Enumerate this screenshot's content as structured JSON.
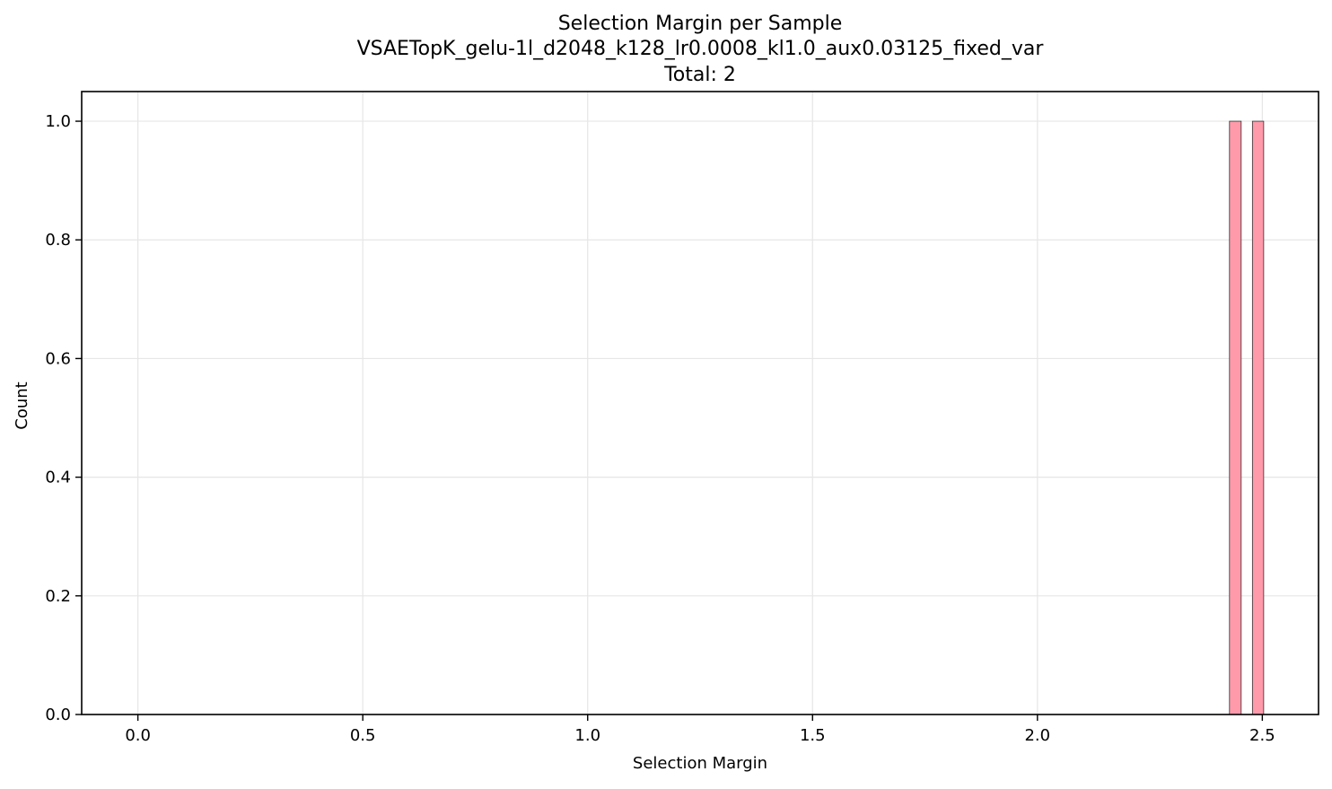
{
  "chart_data": {
    "type": "bar",
    "title": "Selection Margin per Sample",
    "subtitle": "VSAETopK_gelu-1l_d2048_k128_lr0.0008_kl1.0_aux0.03125_fixed_var",
    "summary": "Total: 2",
    "xlabel": "Selection Margin",
    "ylabel": "Count",
    "xlim": [
      -0.125,
      2.625
    ],
    "ylim": [
      0,
      1.05
    ],
    "xticks": [
      0.0,
      0.5,
      1.0,
      1.5,
      2.0,
      2.5
    ],
    "xtick_labels": [
      "0.0",
      "0.5",
      "1.0",
      "1.5",
      "2.0",
      "2.5"
    ],
    "yticks": [
      0.0,
      0.2,
      0.4,
      0.6,
      0.8,
      1.0
    ],
    "ytick_labels": [
      "0.0",
      "0.2",
      "0.4",
      "0.6",
      "0.8",
      "1.0"
    ],
    "grid": true,
    "bar_color": "#ff9aab",
    "bar_edge_color": "#333333",
    "bins": [
      {
        "x_start": 2.427,
        "x_end": 2.453,
        "value": 1
      },
      {
        "x_start": 2.478,
        "x_end": 2.503,
        "value": 1
      }
    ]
  }
}
